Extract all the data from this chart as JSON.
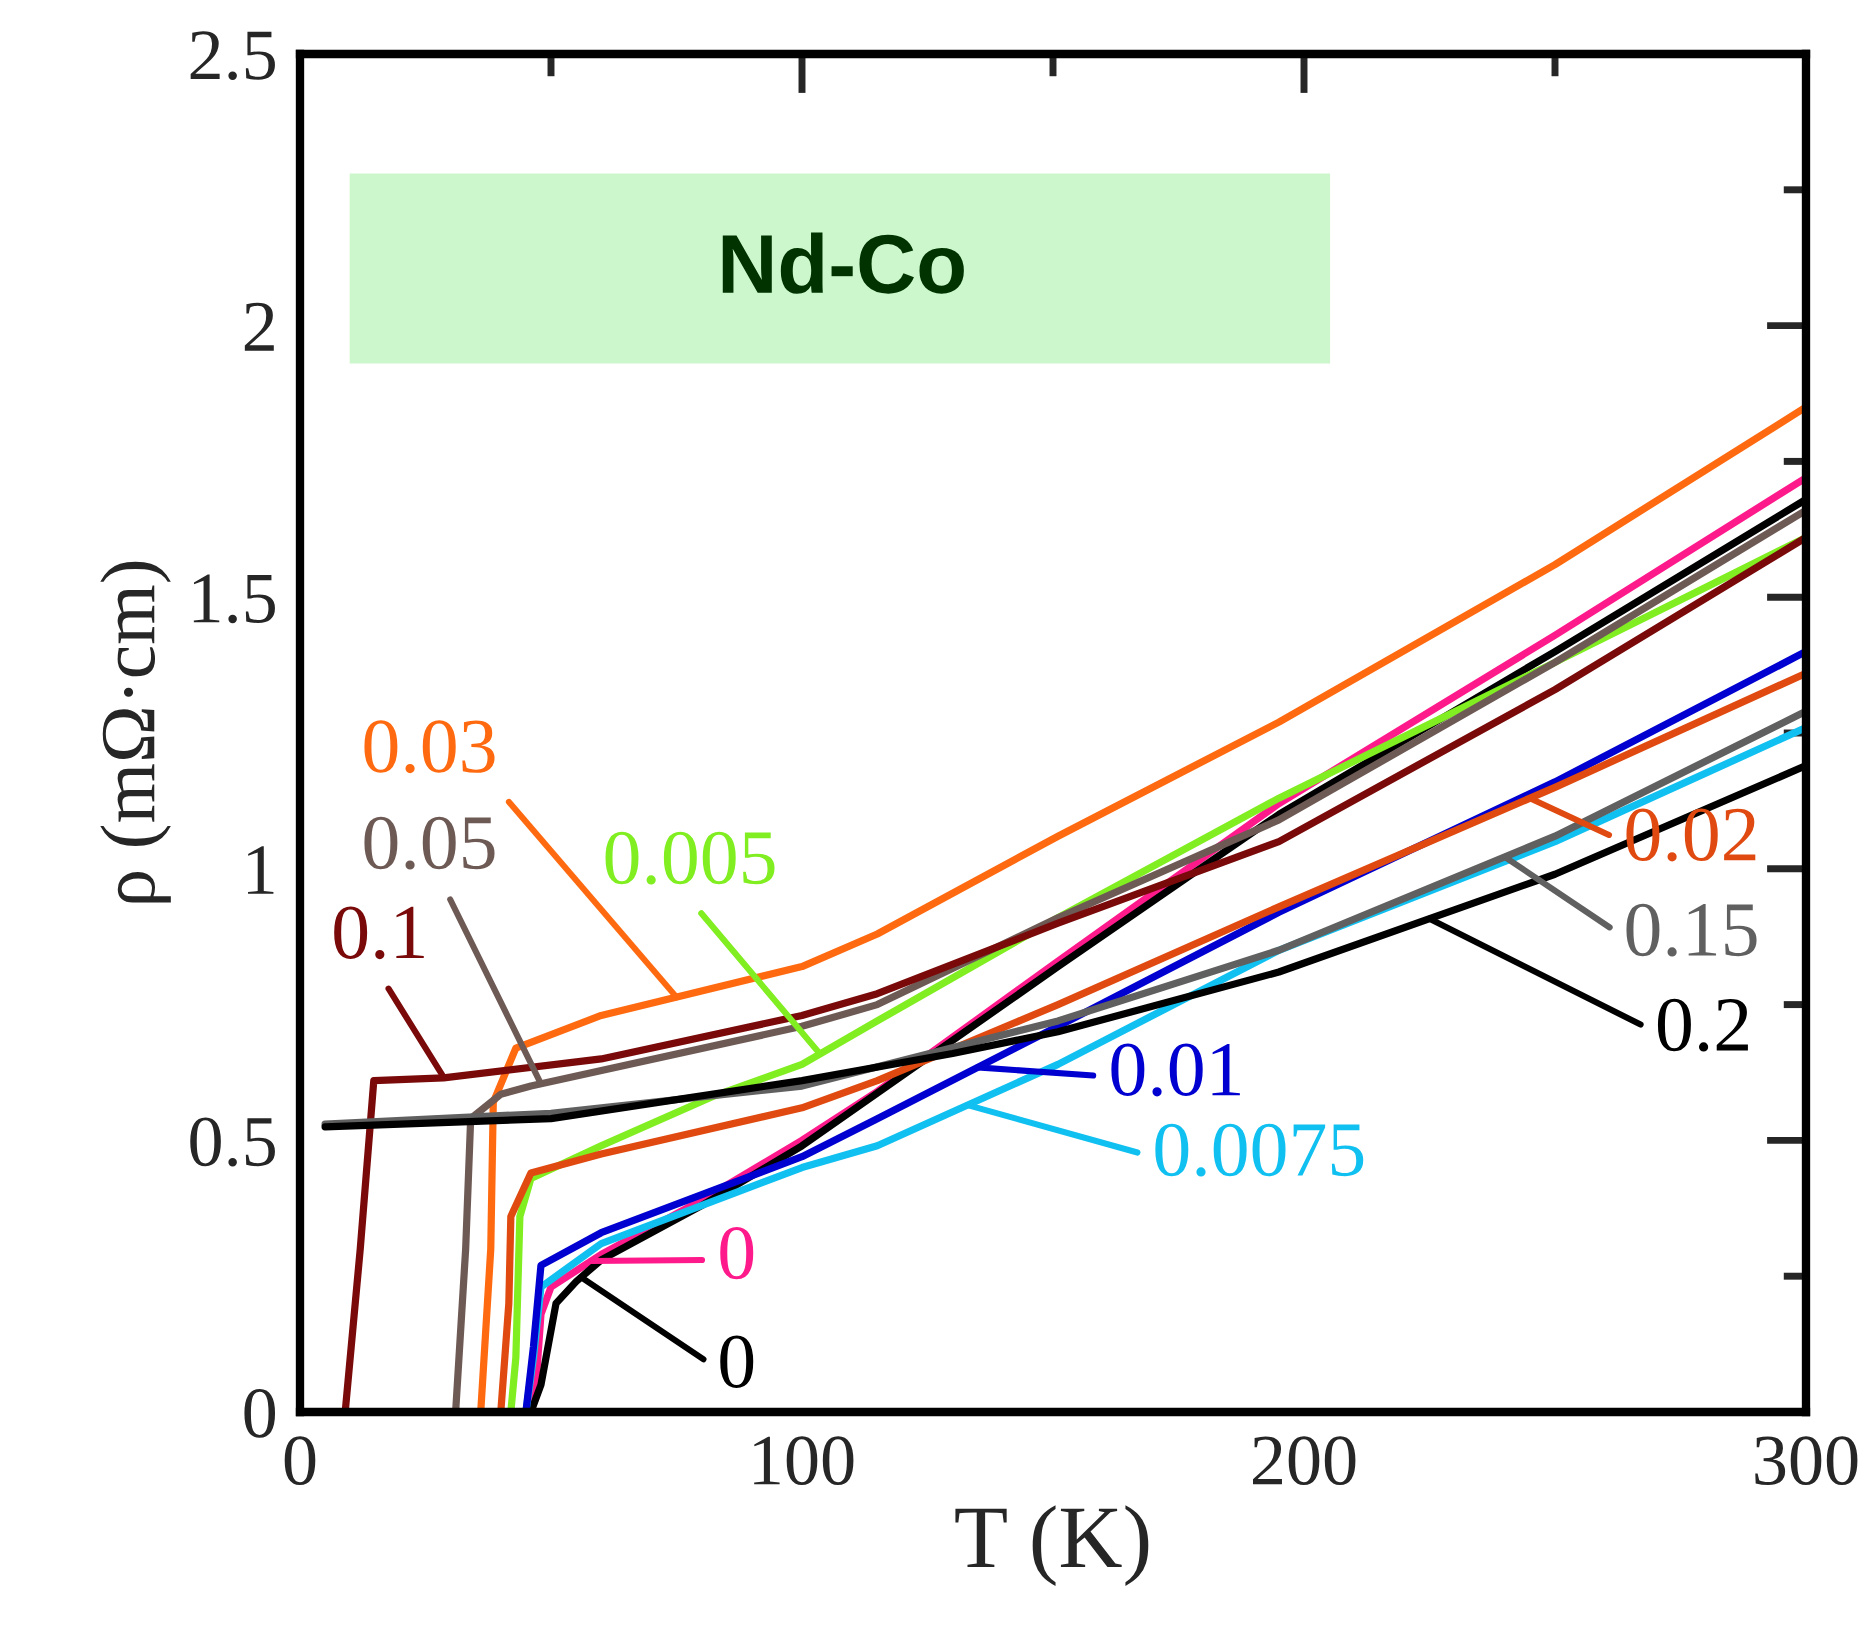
{
  "chart_data": {
    "type": "line",
    "title": "Nd-Co",
    "xlabel": "T (K)",
    "ylabel": "ρ (mΩ·cm)",
    "xlim": [
      0,
      300
    ],
    "xticks": [
      0,
      100,
      200,
      300
    ],
    "ylim": [
      0,
      2.5
    ],
    "yticks": [
      0,
      0.5,
      1,
      1.5,
      2,
      2.5
    ],
    "grid": false,
    "legend": "right",
    "series": [
      {
        "name": "0",
        "color": "#ff1a8c",
        "x": [
          5,
          45,
          47,
          48,
          50,
          60,
          80,
          100,
          115,
          151,
          195,
          250,
          300
        ],
        "values": [
          0,
          0,
          0.05,
          0.18,
          0.23,
          0.29,
          0.39,
          0.5,
          0.59,
          0.83,
          1.12,
          1.43,
          1.72
        ]
      },
      {
        "name": "0",
        "color": "#000000",
        "x": [
          5,
          46,
          48,
          49,
          51,
          55,
          60,
          80,
          100,
          151,
          195,
          250,
          300
        ],
        "values": [
          0,
          0,
          0.05,
          0.1,
          0.2,
          0.24,
          0.28,
          0.38,
          0.49,
          0.82,
          1.1,
          1.4,
          1.68
        ]
      },
      {
        "name": "0.005",
        "color": "#80ee20",
        "x": [
          5,
          42,
          43,
          43.8,
          46,
          60,
          82,
          100,
          115,
          151,
          195,
          250,
          300
        ],
        "values": [
          0,
          0,
          0.1,
          0.36,
          0.43,
          0.49,
          0.58,
          0.64,
          0.72,
          0.91,
          1.13,
          1.38,
          1.61
        ]
      },
      {
        "name": "0.0075",
        "color": "#10c0f0",
        "x": [
          5,
          45,
          46.5,
          48,
          60,
          100,
          115,
          151,
          195,
          250,
          300
        ],
        "values": [
          0,
          0,
          0.1,
          0.23,
          0.31,
          0.45,
          0.49,
          0.64,
          0.85,
          1.05,
          1.26
        ]
      },
      {
        "name": "0.01",
        "color": "#0000d0",
        "x": [
          5,
          45,
          46.5,
          48,
          60,
          100,
          115,
          151,
          195,
          250,
          300
        ],
        "values": [
          0,
          0,
          0.12,
          0.27,
          0.33,
          0.47,
          0.54,
          0.71,
          0.92,
          1.16,
          1.4
        ]
      },
      {
        "name": "0.02",
        "color": "#e04a10",
        "x": [
          5,
          40,
          41.6,
          42,
          46,
          60,
          100,
          115,
          151,
          195,
          250,
          300
        ],
        "values": [
          0,
          0,
          0.2,
          0.36,
          0.44,
          0.475,
          0.56,
          0.61,
          0.75,
          0.93,
          1.15,
          1.36
        ]
      },
      {
        "name": "0.03",
        "color": "#ff6a10",
        "x": [
          5,
          36,
          38,
          38.5,
          43,
          60,
          100,
          115,
          151,
          195,
          250,
          300
        ],
        "values": [
          0,
          0,
          0.3,
          0.57,
          0.67,
          0.73,
          0.82,
          0.88,
          1.06,
          1.27,
          1.56,
          1.85
        ]
      },
      {
        "name": "0.05",
        "color": "#6e5a55",
        "x": [
          5,
          31,
          33,
          34,
          40,
          46,
          100,
          115,
          151,
          195,
          250,
          300
        ],
        "values": [
          0,
          0,
          0.3,
          0.54,
          0.585,
          0.6,
          0.71,
          0.75,
          0.91,
          1.09,
          1.38,
          1.66
        ]
      },
      {
        "name": "0.1",
        "color": "#7a0a0a",
        "x": [
          5,
          9,
          12,
          14.7,
          28.6,
          60,
          100,
          115,
          151,
          195,
          250,
          300
        ],
        "values": [
          0,
          0,
          0.3,
          0.61,
          0.615,
          0.65,
          0.73,
          0.77,
          0.9,
          1.05,
          1.33,
          1.61
        ]
      },
      {
        "name": "0.15",
        "color": "#606060",
        "x": [
          5,
          50,
          100,
          151,
          195,
          250,
          300
        ],
        "values": [
          0.53,
          0.55,
          0.6,
          0.72,
          0.85,
          1.06,
          1.29
        ]
      },
      {
        "name": "0.2",
        "color": "#000000",
        "x": [
          5,
          50,
          100,
          130,
          151,
          195,
          250,
          300
        ],
        "values": [
          0.525,
          0.54,
          0.61,
          0.66,
          0.7,
          0.81,
          0.99,
          1.19
        ]
      }
    ]
  }
}
